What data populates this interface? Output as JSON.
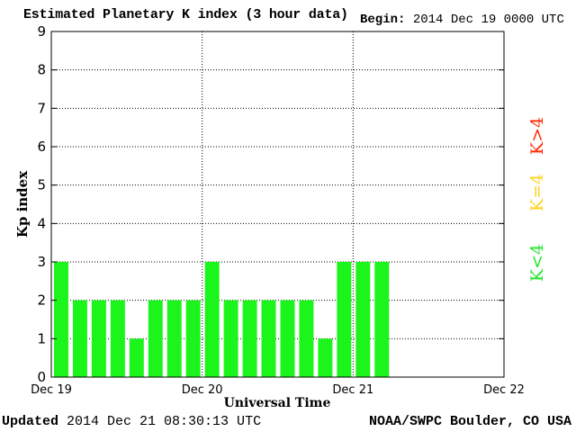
{
  "header": {
    "title": "Estimated Planetary K index (3 hour data)",
    "begin_label": "Begin:",
    "begin_value": "2014 Dec 19 0000 UTC"
  },
  "footer": {
    "updated_label": "Updated",
    "updated_value": "2014 Dec 21 08:30:13 UTC",
    "credit": "NOAA/SWPC Boulder, CO USA"
  },
  "legend": {
    "high": {
      "text": "K>4",
      "color": "#ff2a00"
    },
    "equal": {
      "text": "K=4",
      "color": "#ffd21f"
    },
    "low": {
      "text": "K<4",
      "color": "#21e52a"
    }
  },
  "chart_data": {
    "type": "bar",
    "title": "Estimated Planetary K index (3 hour data)",
    "xlabel": "Universal Time",
    "ylabel": "Kp index",
    "ylim": [
      0,
      9
    ],
    "yticks": [
      0,
      1,
      2,
      3,
      4,
      5,
      6,
      7,
      8,
      9
    ],
    "xticks": [
      "Dec 19",
      "Dec 20",
      "Dec 21",
      "Dec 22"
    ],
    "grid": true,
    "bar_color": "#1cf51c",
    "values": [
      3,
      2,
      2,
      2,
      1,
      2,
      2,
      2,
      3,
      2,
      2,
      2,
      2,
      2,
      1,
      3,
      3,
      3
    ]
  }
}
